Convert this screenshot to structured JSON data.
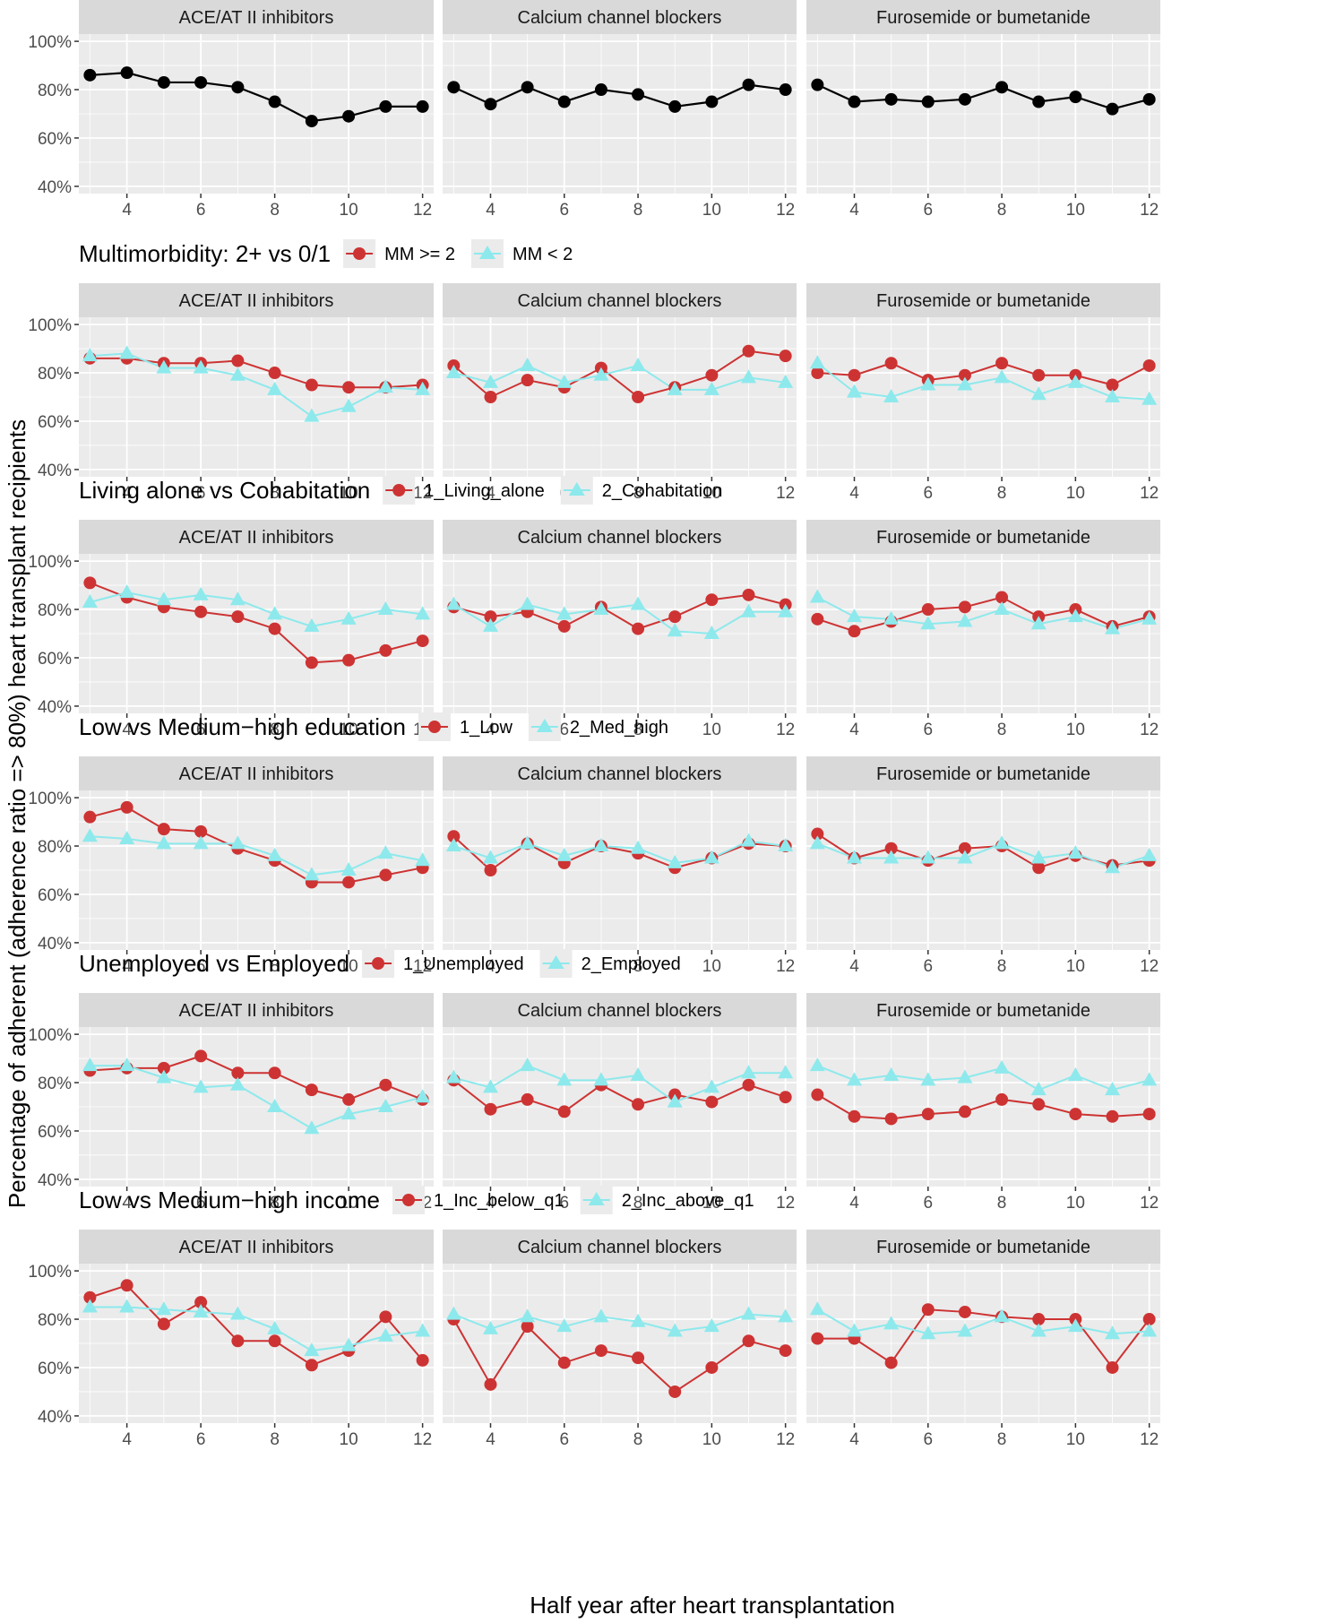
{
  "chart_data": {
    "type": "line",
    "ylabel": "Percentage of adherent (adherence ratio => 80%) heart transplant recipients",
    "xlabel": "Half year after heart transplantation",
    "facets": [
      "ACE/AT II inhibitors",
      "Calcium channel blockers",
      "Furosemide or bumetanide"
    ],
    "x": [
      3,
      4,
      5,
      6,
      7,
      8,
      9,
      10,
      11,
      12
    ],
    "x_ticks": [
      4,
      6,
      8,
      10,
      12
    ],
    "x_range": [
      2.7,
      12.3
    ],
    "y_ticks": [
      40,
      60,
      80,
      100
    ],
    "y_tick_labels": [
      "40%",
      "60%",
      "80%",
      "100%"
    ],
    "colors": {
      "overall": "#000000",
      "group1": "#cd3333",
      "group2": "#8de9ec"
    },
    "rows": [
      {
        "title": "",
        "ylim": [
          37,
          103
        ],
        "series": [
          {
            "name": "",
            "color": "#000000",
            "marker": "circle",
            "values": [
              [
                86,
                87,
                83,
                83,
                81,
                75,
                67,
                69,
                73,
                73
              ],
              [
                81,
                74,
                81,
                75,
                80,
                78,
                73,
                75,
                82,
                80
              ],
              [
                82,
                75,
                76,
                75,
                76,
                81,
                75,
                77,
                72,
                76
              ]
            ]
          }
        ]
      },
      {
        "title": "Multimorbidity: 2+ vs 0/1",
        "ylim": [
          37,
          103
        ],
        "series": [
          {
            "name": "MM >= 2",
            "color": "#cd3333",
            "marker": "circle",
            "values": [
              [
                86,
                86,
                84,
                84,
                85,
                80,
                75,
                74,
                74,
                75
              ],
              [
                83,
                70,
                77,
                74,
                82,
                70,
                74,
                79,
                89,
                87
              ],
              [
                80,
                79,
                84,
                77,
                79,
                84,
                79,
                79,
                75,
                83
              ]
            ]
          },
          {
            "name": "MM < 2",
            "color": "#8de9ec",
            "marker": "triangle",
            "values": [
              [
                87,
                88,
                82,
                82,
                79,
                73,
                62,
                66,
                74,
                73
              ],
              [
                80,
                76,
                83,
                76,
                79,
                83,
                73,
                73,
                78,
                76
              ],
              [
                84,
                72,
                70,
                75,
                75,
                78,
                71,
                76,
                70,
                69
              ]
            ]
          }
        ]
      },
      {
        "title": "Living alone vs Cohabitation",
        "ylim": [
          37,
          103
        ],
        "series": [
          {
            "name": "1_Living_alone",
            "color": "#cd3333",
            "marker": "circle",
            "values": [
              [
                91,
                85,
                81,
                79,
                77,
                72,
                58,
                59,
                63,
                67
              ],
              [
                81,
                77,
                79,
                73,
                81,
                72,
                77,
                84,
                86,
                82
              ],
              [
                76,
                71,
                75,
                80,
                81,
                85,
                77,
                80,
                73,
                77
              ]
            ]
          },
          {
            "name": "2_Cohabitation",
            "color": "#8de9ec",
            "marker": "triangle",
            "values": [
              [
                83,
                87,
                84,
                86,
                84,
                78,
                73,
                76,
                80,
                78
              ],
              [
                82,
                73,
                82,
                78,
                80,
                82,
                71,
                70,
                79,
                79
              ],
              [
                85,
                77,
                76,
                74,
                75,
                80,
                74,
                77,
                72,
                76
              ]
            ]
          }
        ]
      },
      {
        "title": "Low vs Medium−high education",
        "ylim": [
          37,
          103
        ],
        "series": [
          {
            "name": "1_Low",
            "color": "#cd3333",
            "marker": "circle",
            "values": [
              [
                92,
                96,
                87,
                86,
                79,
                74,
                65,
                65,
                68,
                71
              ],
              [
                84,
                70,
                81,
                73,
                80,
                77,
                71,
                75,
                81,
                80
              ],
              [
                85,
                75,
                79,
                74,
                79,
                80,
                71,
                76,
                72,
                74
              ]
            ]
          },
          {
            "name": "2_Med_high",
            "color": "#8de9ec",
            "marker": "triangle",
            "values": [
              [
                84,
                83,
                81,
                81,
                81,
                76,
                68,
                70,
                77,
                74
              ],
              [
                80,
                75,
                81,
                76,
                80,
                79,
                73,
                75,
                82,
                80
              ],
              [
                81,
                75,
                75,
                75,
                75,
                81,
                75,
                77,
                71,
                76
              ]
            ]
          }
        ]
      },
      {
        "title": "Unemployed vs Employed",
        "ylim": [
          37,
          103
        ],
        "series": [
          {
            "name": "1_Unemployed",
            "color": "#cd3333",
            "marker": "circle",
            "values": [
              [
                85,
                86,
                86,
                91,
                84,
                84,
                77,
                73,
                79,
                73
              ],
              [
                81,
                69,
                73,
                68,
                79,
                71,
                75,
                72,
                79,
                74
              ],
              [
                75,
                66,
                65,
                67,
                68,
                73,
                71,
                67,
                66,
                67
              ]
            ]
          },
          {
            "name": "2_Employed",
            "color": "#8de9ec",
            "marker": "triangle",
            "values": [
              [
                87,
                87,
                82,
                78,
                79,
                70,
                61,
                67,
                70,
                74
              ],
              [
                82,
                78,
                87,
                81,
                81,
                83,
                72,
                78,
                84,
                84
              ],
              [
                87,
                81,
                83,
                81,
                82,
                86,
                77,
                83,
                77,
                81
              ]
            ]
          }
        ]
      },
      {
        "title": "Low vs Medium−high income",
        "legend_labels": [
          "1_Inc_below_q1",
          "2_Inc_above_q1"
        ],
        "ylim": [
          37,
          103
        ],
        "series": [
          {
            "name": "1_Inc_below_q1",
            "color": "#cd3333",
            "marker": "circle",
            "values": [
              [
                89,
                94,
                78,
                87,
                71,
                71,
                61,
                67,
                81,
                63
              ],
              [
                80,
                53,
                77,
                62,
                67,
                64,
                50,
                60,
                71,
                67
              ],
              [
                72,
                72,
                62,
                84,
                83,
                81,
                80,
                80,
                60,
                80
              ]
            ]
          },
          {
            "name": "2_Inc_above_q1",
            "color": "#8de9ec",
            "marker": "triangle",
            "values": [
              [
                85,
                85,
                84,
                83,
                82,
                76,
                67,
                69,
                73,
                75
              ],
              [
                82,
                76,
                81,
                77,
                81,
                79,
                75,
                77,
                82,
                81
              ],
              [
                84,
                75,
                78,
                74,
                75,
                81,
                75,
                77,
                74,
                75
              ]
            ]
          }
        ]
      }
    ]
  }
}
